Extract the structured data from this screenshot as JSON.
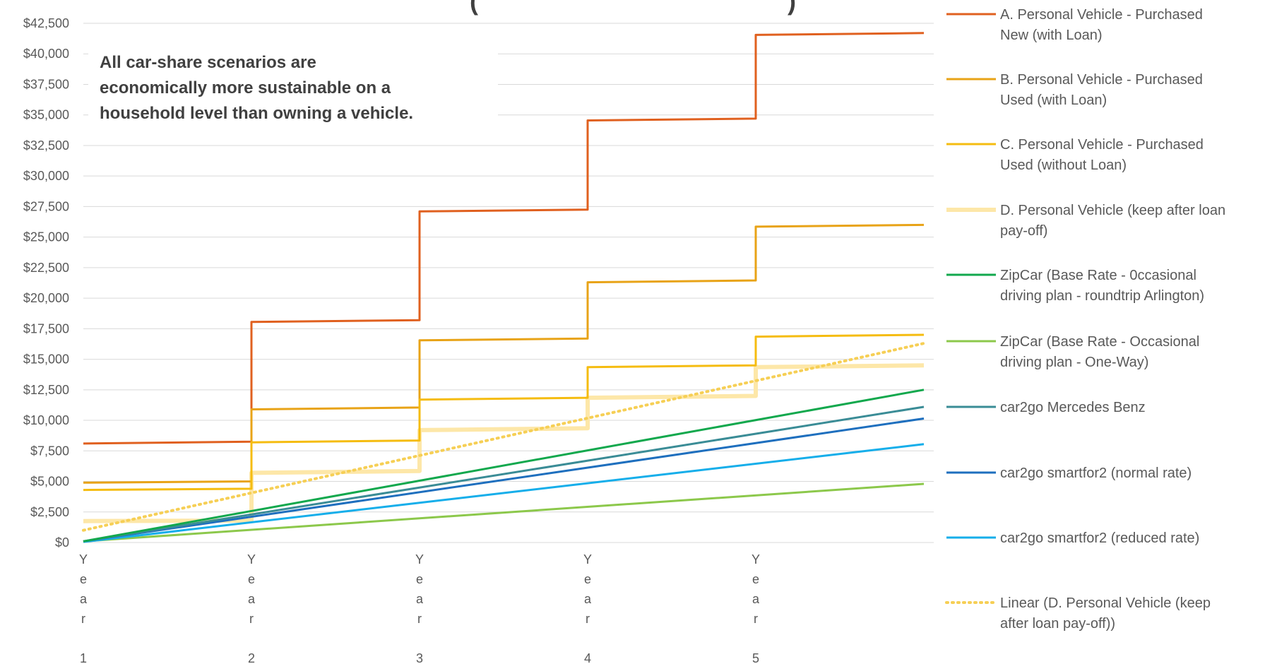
{
  "chart_data": {
    "type": "line",
    "title": "(",
    "title_suffix": ")",
    "annotation": [
      "All car-share scenarios are",
      "economically more sustainable on a",
      "household level than owning a vehicle."
    ],
    "y_axis": {
      "min": 0,
      "max": 42500,
      "step": 2500,
      "tick_labels": [
        "$0",
        "$2,500",
        "$5,000",
        "$7,500",
        "$10,000",
        "$12,500",
        "$15,000",
        "$17,500",
        "$20,000",
        "$22,500",
        "$25,000",
        "$27,500",
        "$30,000",
        "$32,500",
        "$35,000",
        "$37,500",
        "$40,000",
        "$42,500"
      ],
      "grid": true
    },
    "x_axis": {
      "min": 0,
      "max": 5,
      "categories": [
        "Year 1",
        "Year 2",
        "Year 3",
        "Year 4",
        "Year 5"
      ]
    },
    "legend_position": "right",
    "series": [
      {
        "name": "A. Personal Vehicle - Purchased New (with Loan)",
        "color": "#E0601F",
        "style": "solid",
        "points": [
          [
            0,
            8100
          ],
          [
            1,
            8250
          ],
          [
            1,
            18050
          ],
          [
            2,
            18200
          ],
          [
            2,
            27100
          ],
          [
            3,
            27250
          ],
          [
            3,
            34550
          ],
          [
            4,
            34700
          ],
          [
            4,
            41550
          ],
          [
            5,
            41700
          ]
        ]
      },
      {
        "name": "B. Personal Vehicle - Purchased Used (with Loan)",
        "color": "#E8A317",
        "style": "solid",
        "points": [
          [
            0,
            4900
          ],
          [
            1,
            5000
          ],
          [
            1,
            10900
          ],
          [
            2,
            11050
          ],
          [
            2,
            16550
          ],
          [
            3,
            16700
          ],
          [
            3,
            21300
          ],
          [
            4,
            21450
          ],
          [
            4,
            25850
          ],
          [
            5,
            26000
          ]
        ]
      },
      {
        "name": "C. Personal Vehicle - Purchased Used (without Loan)",
        "color": "#F5BC10",
        "style": "solid",
        "points": [
          [
            0,
            4300
          ],
          [
            1,
            4400
          ],
          [
            1,
            8200
          ],
          [
            2,
            8350
          ],
          [
            2,
            11700
          ],
          [
            3,
            11850
          ],
          [
            3,
            14350
          ],
          [
            4,
            14500
          ],
          [
            4,
            16850
          ],
          [
            5,
            17000
          ]
        ]
      },
      {
        "name": "D. Personal Vehicle (keep after loan pay-off)",
        "color": "#FDE7A8",
        "style": "wide",
        "points": [
          [
            0,
            1750
          ],
          [
            1,
            1800
          ],
          [
            1,
            5700
          ],
          [
            2,
            5850
          ],
          [
            2,
            9200
          ],
          [
            3,
            9350
          ],
          [
            3,
            11850
          ],
          [
            4,
            12000
          ],
          [
            4,
            14350
          ],
          [
            5,
            14500
          ]
        ]
      },
      {
        "name": "ZipCar (Base Rate - 0ccasional driving plan - roundtrip Arlington)",
        "color": "#12A84D",
        "style": "solid",
        "points": [
          [
            0,
            100
          ],
          [
            5,
            12500
          ]
        ]
      },
      {
        "name": "ZipCar (Base Rate - Occasional driving plan - One-Way)",
        "color": "#8CC84B",
        "style": "solid",
        "points": [
          [
            0,
            100
          ],
          [
            5,
            4800
          ]
        ]
      },
      {
        "name": "car2go Mercedes Benz",
        "color": "#3A8C96",
        "style": "solid",
        "points": [
          [
            0,
            100
          ],
          [
            5,
            11100
          ]
        ]
      },
      {
        "name": "car2go smartfor2 (normal  rate)",
        "color": "#1E6FBE",
        "style": "solid",
        "points": [
          [
            0,
            100
          ],
          [
            5,
            10150
          ]
        ]
      },
      {
        "name": "car2go smartfor2 (reduced rate)",
        "color": "#16AEEA",
        "style": "solid",
        "points": [
          [
            0,
            50
          ],
          [
            5,
            8050
          ]
        ]
      },
      {
        "name": "Linear (D. Personal Vehicle (keep after loan pay-off))",
        "color": "#F6CF55",
        "style": "dotted",
        "points": [
          [
            0,
            1000
          ],
          [
            5,
            16300
          ]
        ]
      }
    ]
  }
}
